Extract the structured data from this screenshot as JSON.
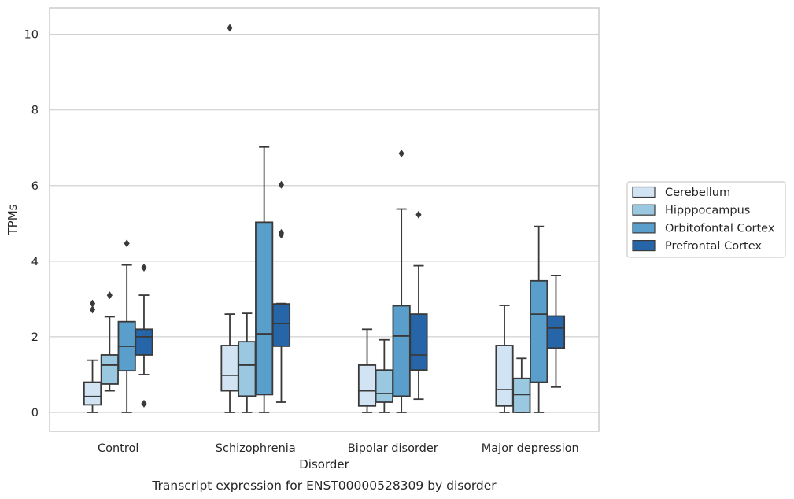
{
  "chart_data": {
    "type": "boxplot",
    "title": "",
    "caption": "Transcript expression for ENST00000528309 by disorder",
    "xlabel": "Disorder",
    "ylabel": "TPMs",
    "ylim": [
      -0.5,
      10.7
    ],
    "yticks": [
      0,
      2,
      4,
      6,
      8,
      10
    ],
    "grid": true,
    "legend_position": "right",
    "categories": [
      "Control",
      "Schizophrenia",
      "Bipolar disorder",
      "Major depression"
    ],
    "series": [
      {
        "name": "Cerebellum",
        "color": "#d2e3f3",
        "boxes": [
          {
            "q1": 0.2,
            "median": 0.42,
            "q3": 0.8,
            "whisker_low": 0.0,
            "whisker_high": 1.38,
            "outliers": [
              2.72,
              2.88
            ]
          },
          {
            "q1": 0.57,
            "median": 0.98,
            "q3": 1.77,
            "whisker_low": 0.0,
            "whisker_high": 2.6,
            "outliers": [
              10.17
            ]
          },
          {
            "q1": 0.17,
            "median": 0.57,
            "q3": 1.25,
            "whisker_low": 0.0,
            "whisker_high": 2.2,
            "outliers": []
          },
          {
            "q1": 0.17,
            "median": 0.6,
            "q3": 1.77,
            "whisker_low": 0.0,
            "whisker_high": 2.83,
            "outliers": []
          }
        ]
      },
      {
        "name": "Hipppocampus",
        "color": "#9ac8e0",
        "boxes": [
          {
            "q1": 0.75,
            "median": 1.25,
            "q3": 1.52,
            "whisker_low": 0.57,
            "whisker_high": 2.53,
            "outliers": [
              3.1
            ]
          },
          {
            "q1": 0.43,
            "median": 1.25,
            "q3": 1.87,
            "whisker_low": 0.0,
            "whisker_high": 2.62,
            "outliers": []
          },
          {
            "q1": 0.27,
            "median": 0.5,
            "q3": 1.12,
            "whisker_low": 0.0,
            "whisker_high": 1.92,
            "outliers": []
          },
          {
            "q1": 0.0,
            "median": 0.47,
            "q3": 0.9,
            "whisker_low": 0.0,
            "whisker_high": 1.43,
            "outliers": []
          }
        ]
      },
      {
        "name": "Orbitofontal Cortex",
        "color": "#5a9fcb",
        "boxes": [
          {
            "q1": 1.1,
            "median": 1.75,
            "q3": 2.4,
            "whisker_low": 0.0,
            "whisker_high": 3.9,
            "outliers": [
              4.47
            ]
          },
          {
            "q1": 0.47,
            "median": 2.08,
            "q3": 5.03,
            "whisker_low": 0.0,
            "whisker_high": 7.02,
            "outliers": []
          },
          {
            "q1": 0.43,
            "median": 2.02,
            "q3": 2.82,
            "whisker_low": 0.0,
            "whisker_high": 5.38,
            "outliers": [
              6.85
            ]
          },
          {
            "q1": 0.8,
            "median": 2.6,
            "q3": 3.48,
            "whisker_low": 0.0,
            "whisker_high": 4.92,
            "outliers": []
          }
        ]
      },
      {
        "name": "Prefrontal Cortex",
        "color": "#2565a8",
        "boxes": [
          {
            "q1": 1.52,
            "median": 2.0,
            "q3": 2.2,
            "whisker_low": 1.0,
            "whisker_high": 3.1,
            "outliers": [
              0.23,
              3.83
            ]
          },
          {
            "q1": 1.75,
            "median": 2.35,
            "q3": 2.87,
            "whisker_low": 0.27,
            "whisker_high": 2.88,
            "outliers": [
              4.7,
              4.75,
              6.02
            ]
          },
          {
            "q1": 1.12,
            "median": 1.52,
            "q3": 2.6,
            "whisker_low": 0.35,
            "whisker_high": 3.88,
            "outliers": [
              5.23
            ]
          },
          {
            "q1": 1.7,
            "median": 2.23,
            "q3": 2.55,
            "whisker_low": 0.67,
            "whisker_high": 3.62,
            "outliers": []
          }
        ]
      }
    ]
  }
}
